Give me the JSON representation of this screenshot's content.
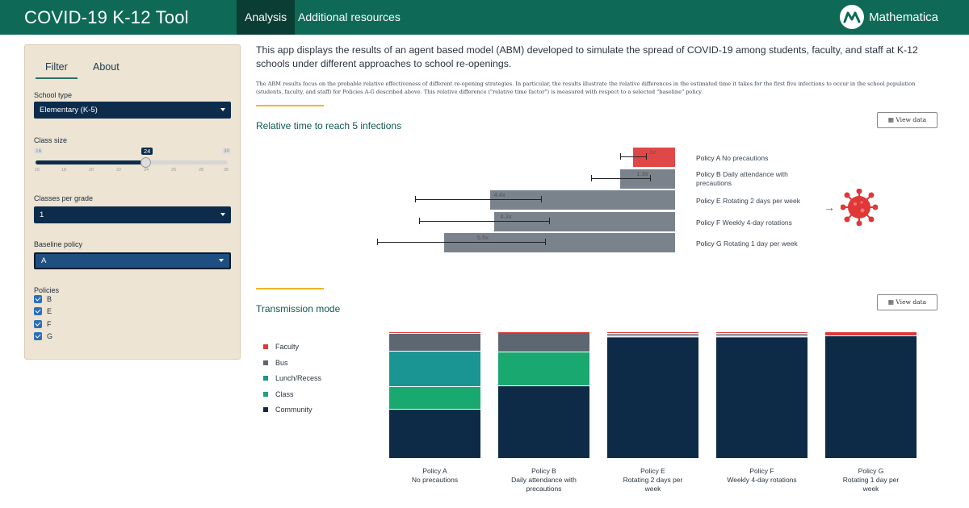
{
  "header": {
    "title": "COVID-19 K-12 Tool",
    "tabs": [
      "Analysis",
      "Additional resources"
    ],
    "logo_text": "Mathematica"
  },
  "sidebar": {
    "tabs": [
      "Filter",
      "About"
    ],
    "school_type_label": "School type",
    "school_type_value": "Elementary (K-5)",
    "class_size_label": "Class size",
    "class_size": {
      "min": "16",
      "max": "30",
      "value": "24",
      "ticks": [
        "16",
        "18",
        "20",
        "22",
        "24",
        "26",
        "28",
        "30"
      ]
    },
    "classes_per_grade_label": "Classes per grade",
    "classes_per_grade_value": "1",
    "baseline_label": "Baseline policy",
    "baseline_value": "A",
    "policies_label": "Policies",
    "policies": [
      "B",
      "E",
      "F",
      "G"
    ]
  },
  "main": {
    "intro": "This app displays the results of an agent based model (ABM) developed to simulate the spread of COVID-19 among students, faculty, and staff at K-12 schools under different approaches to school re-openings.",
    "description": "The ABM results focus on the probable relative effectiveness of different re-opening strategies. In particular, the results illustrate the relative differences in the estimated time it takes for the first five infections to occur in the school population (students, faculty, and staff) for Policies A-G described above. This relative difference (\"relative time factor\") is measured with respect to a selected \"baseline\" policy.",
    "view_data_label": "View data",
    "colors": {
      "accent": "#0e6a57",
      "gold": "#f0b429",
      "navy": "#0d2c4c"
    }
  },
  "chart_data": [
    {
      "type": "bar",
      "title": "Relative time to reach 5 infections",
      "categories": [
        {
          "policy": "Policy A",
          "desc": "No precautions"
        },
        {
          "policy": "Policy B",
          "desc": "Daily attendance with precautions"
        },
        {
          "policy": "Policy E",
          "desc": "Rotating 2 days per week"
        },
        {
          "policy": "Policy F",
          "desc": "Weekly 4-day rotations"
        },
        {
          "policy": "Policy G",
          "desc": "Rotating 1 day per week"
        }
      ],
      "values": [
        1,
        1.3,
        4.4,
        4.3,
        5.5
      ],
      "value_labels": [
        "1x",
        "1.3x",
        "4.4x",
        "4.3x",
        "5.5x"
      ],
      "error_low": [
        0.7,
        0.6,
        3.2,
        3.0,
        3.1
      ],
      "error_high": [
        1.3,
        2.0,
        6.2,
        6.1,
        7.1
      ],
      "highlight_index": 0,
      "orientation": "horizontal-leftward",
      "icon": "virus-icon"
    },
    {
      "type": "bar",
      "title": "Transmission mode",
      "stacked": true,
      "normalized": true,
      "categories": [
        {
          "policy": "Policy A",
          "desc": "No precautions"
        },
        {
          "policy": "Policy B",
          "desc": "Daily attendance with precautions"
        },
        {
          "policy": "Policy E",
          "desc": "Rotating 2 days per week"
        },
        {
          "policy": "Policy F",
          "desc": "Weekly 4-day rotations"
        },
        {
          "policy": "Policy G",
          "desc": "Rotating 1 day per week"
        }
      ],
      "series": [
        {
          "name": "Community",
          "color": "#0d2b47",
          "values": [
            36,
            53,
            95,
            95,
            97
          ]
        },
        {
          "name": "Class",
          "color": "#1aa871",
          "values": [
            16,
            25,
            1,
            1,
            0
          ]
        },
        {
          "name": "Lunch/Recess",
          "color": "#1b9494",
          "values": [
            26,
            0,
            1,
            1,
            0
          ]
        },
        {
          "name": "Bus",
          "color": "#5d6771",
          "values": [
            13,
            14,
            1.5,
            1.5,
            0
          ]
        },
        {
          "name": "Faculty",
          "color": "#e03737",
          "values": [
            1,
            0.5,
            1,
            1,
            3
          ]
        }
      ],
      "legend_placement": "left"
    }
  ]
}
